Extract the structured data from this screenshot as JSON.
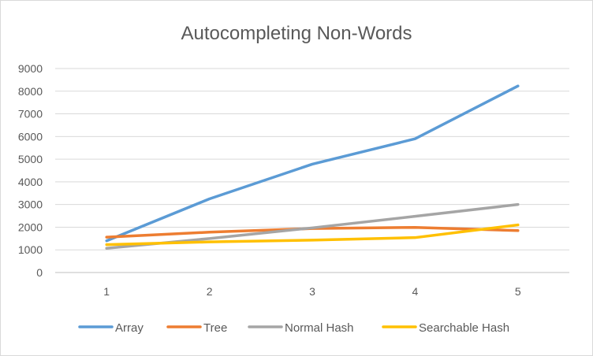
{
  "chart_data": {
    "type": "line",
    "title": "Autocompleting Non-Words",
    "xlabel": "",
    "ylabel": "",
    "categories": [
      "1",
      "2",
      "3",
      "4",
      "5"
    ],
    "ylim": [
      0,
      9000
    ],
    "yticks": [
      0,
      1000,
      2000,
      3000,
      4000,
      5000,
      6000,
      7000,
      8000,
      9000
    ],
    "grid": true,
    "legend_position": "bottom",
    "series": [
      {
        "name": "Array",
        "color": "#5b9bd5",
        "values": [
          1400,
          3250,
          4780,
          5900,
          8230
        ]
      },
      {
        "name": "Tree",
        "color": "#ed7d31",
        "values": [
          1560,
          1780,
          1940,
          1990,
          1850
        ]
      },
      {
        "name": "Normal Hash",
        "color": "#a5a5a5",
        "values": [
          1070,
          1500,
          1970,
          2480,
          3000
        ]
      },
      {
        "name": "Searchable Hash",
        "color": "#ffc000",
        "values": [
          1230,
          1350,
          1430,
          1540,
          2100
        ]
      }
    ]
  }
}
